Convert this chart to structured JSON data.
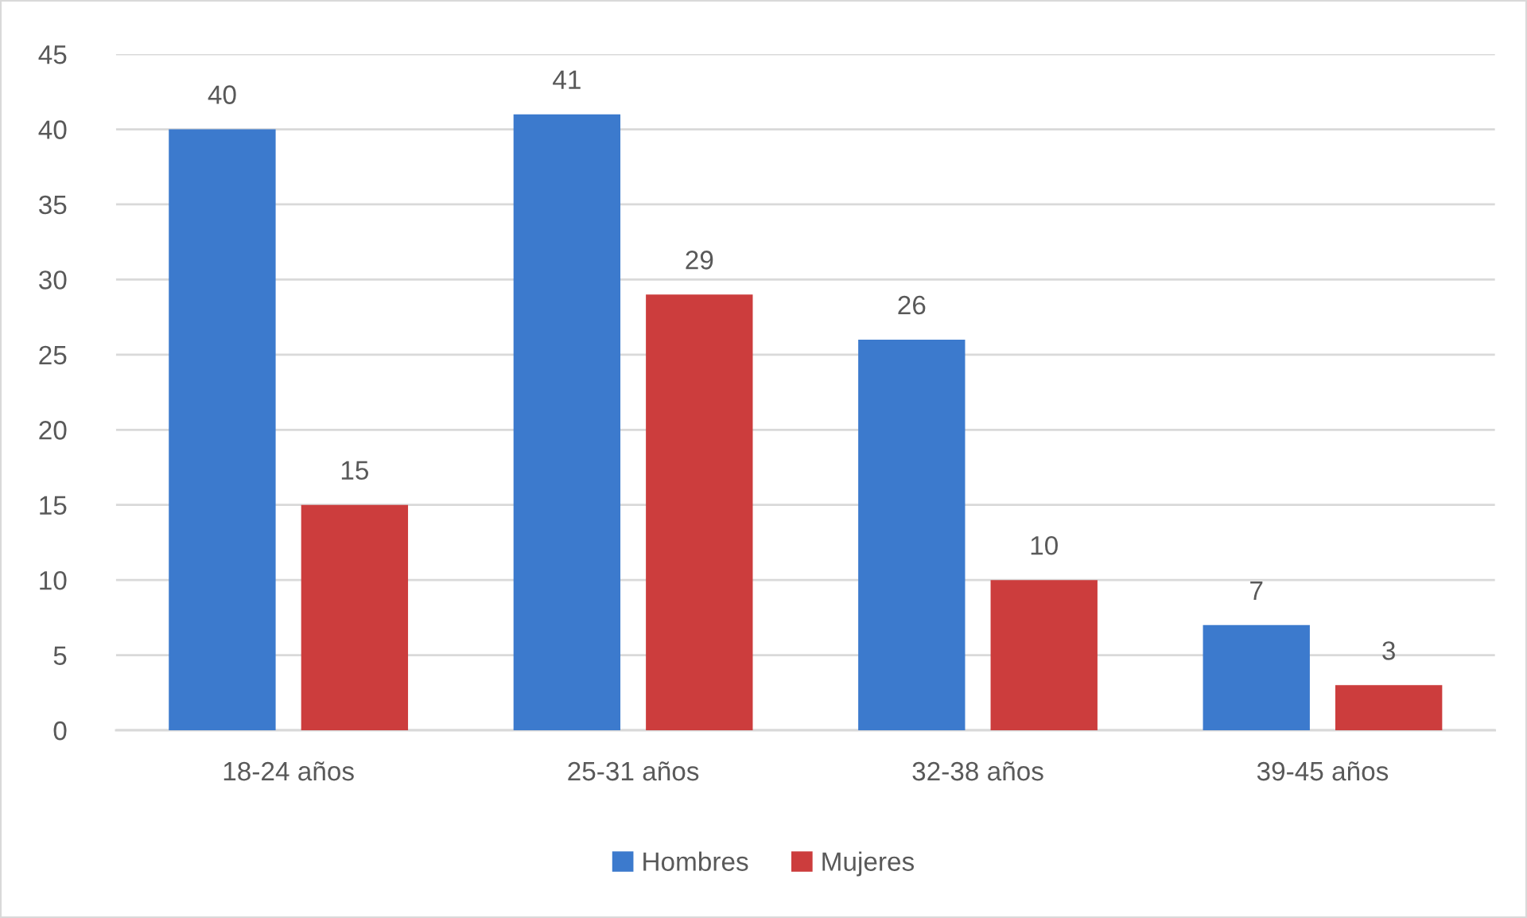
{
  "chart_data": {
    "type": "bar",
    "categories": [
      "18-24 años",
      "25-31 años",
      "32-38 años",
      "39-45 años"
    ],
    "series": [
      {
        "name": "Hombres",
        "color": "#3c7acd",
        "values": [
          40,
          41,
          26,
          7
        ]
      },
      {
        "name": "Mujeres",
        "color": "#cc3d3d",
        "values": [
          15,
          29,
          10,
          3
        ]
      }
    ],
    "ylim": [
      0,
      45
    ],
    "yticks": [
      0,
      5,
      10,
      15,
      20,
      25,
      30,
      35,
      40,
      45
    ],
    "grid": "y",
    "legend": "bottom",
    "data_labels": true
  }
}
